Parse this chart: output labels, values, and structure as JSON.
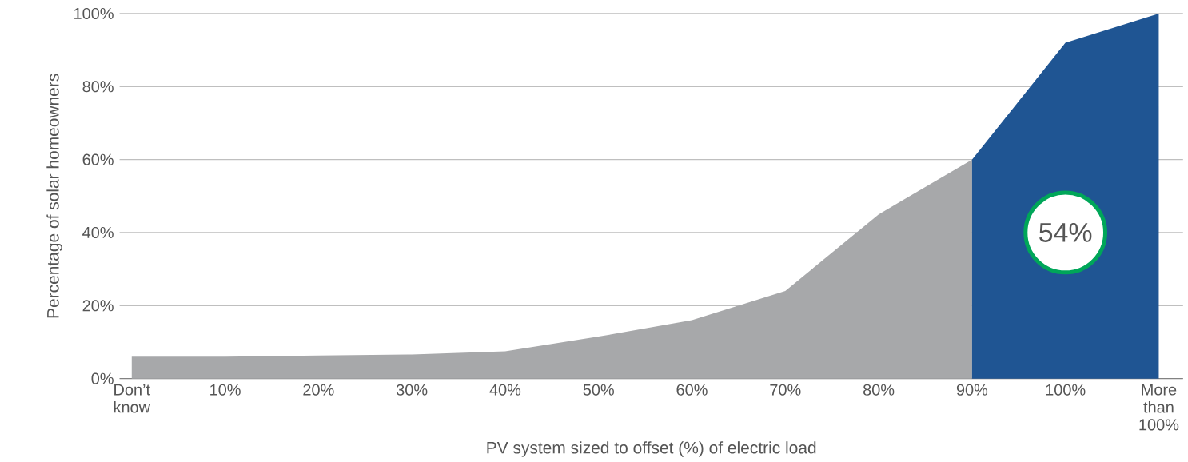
{
  "chart_data": {
    "type": "area",
    "xlabel": "PV system sized to offset (%) of electric load",
    "ylabel": "Percentage of solar homeowners",
    "categories": [
      "Don’t know",
      "10%",
      "20%",
      "30%",
      "40%",
      "50%",
      "60%",
      "70%",
      "80%",
      "90%",
      "100%",
      "More than 100%"
    ],
    "series": [
      {
        "color": "#a7a8aa",
        "values": [
          6,
          6,
          6.3,
          6.6,
          7.5,
          11.5,
          16,
          24,
          45,
          60,
          null,
          null
        ]
      },
      {
        "color": "#1f5593",
        "values": [
          null,
          null,
          null,
          null,
          null,
          null,
          null,
          null,
          null,
          60,
          92,
          100
        ]
      }
    ],
    "ylim": [
      0,
      100
    ],
    "yticks": [
      {
        "value": 0,
        "label": "0%"
      },
      {
        "value": 20,
        "label": "20%"
      },
      {
        "value": 40,
        "label": "40%"
      },
      {
        "value": 60,
        "label": "60%"
      },
      {
        "value": 80,
        "label": "80%"
      },
      {
        "value": 100,
        "label": "100%"
      }
    ],
    "grid": "y",
    "annotations": [
      "54%"
    ]
  }
}
